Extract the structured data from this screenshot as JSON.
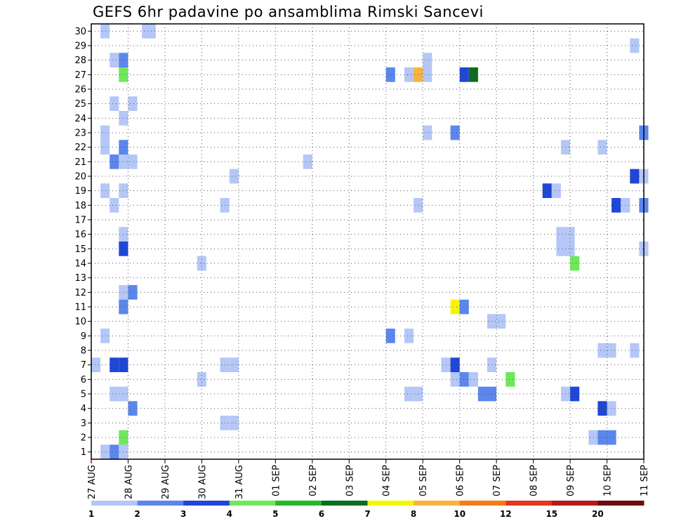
{
  "chart_data": {
    "type": "heatmap",
    "title": "GEFS 6hr padavine po ansamblima Rimski Sancevi",
    "xlabel": "",
    "ylabel": "",
    "x_ticks": [
      "27 AUG",
      "28 AUG",
      "29 AUG",
      "30 AUG",
      "31 AUG",
      "01 SEP",
      "02 SEP",
      "03 SEP",
      "04 SEP",
      "05 SEP",
      "06 SEP",
      "07 SEP",
      "08 SEP",
      "09 SEP",
      "10 SEP",
      "11 SEP"
    ],
    "x_range_days": [
      0,
      15
    ],
    "y_ticks": [
      1,
      2,
      3,
      4,
      5,
      6,
      7,
      8,
      9,
      10,
      11,
      12,
      13,
      14,
      15,
      16,
      17,
      18,
      19,
      20,
      21,
      22,
      23,
      24,
      25,
      26,
      27,
      28,
      29,
      30
    ],
    "y_range": [
      0.5,
      30.5
    ],
    "grid": true,
    "legend": {
      "placement": "bottom",
      "labels": [
        "1",
        "2",
        "3",
        "4",
        "5",
        "6",
        "7",
        "8",
        "10",
        "12",
        "15",
        "20"
      ],
      "colors": [
        "#b4c7f6",
        "#5b86ec",
        "#1f46d6",
        "#6ee85a",
        "#25b82c",
        "#0a6e1e",
        "#f6f600",
        "#f8b43a",
        "#f57c16",
        "#df3a1e",
        "#b31a1a",
        "#6e0c0c"
      ]
    },
    "cells": [
      {
        "day": 0.375,
        "member": 30,
        "c": 1
      },
      {
        "day": 1.5,
        "member": 30,
        "c": 1
      },
      {
        "day": 1.625,
        "member": 30,
        "c": 1
      },
      {
        "day": 14.75,
        "member": 29,
        "c": 1
      },
      {
        "day": 0.625,
        "member": 28,
        "c": 1
      },
      {
        "day": 0.875,
        "member": 28,
        "c": 2
      },
      {
        "day": 9.125,
        "member": 28,
        "c": 1
      },
      {
        "day": 0.875,
        "member": 27,
        "c": 4
      },
      {
        "day": 8.125,
        "member": 27,
        "c": 2
      },
      {
        "day": 8.625,
        "member": 27,
        "c": 1
      },
      {
        "day": 8.875,
        "member": 27,
        "c": 8
      },
      {
        "day": 9.125,
        "member": 27,
        "c": 1
      },
      {
        "day": 10.125,
        "member": 27,
        "c": 3
      },
      {
        "day": 10.375,
        "member": 27,
        "c": 6
      },
      {
        "day": 0.625,
        "member": 25,
        "c": 1
      },
      {
        "day": 1.125,
        "member": 25,
        "c": 1
      },
      {
        "day": 0.875,
        "member": 24,
        "c": 1
      },
      {
        "day": 0.375,
        "member": 23,
        "c": 1
      },
      {
        "day": 9.125,
        "member": 23,
        "c": 1
      },
      {
        "day": 9.875,
        "member": 23,
        "c": 2
      },
      {
        "day": 15.0,
        "member": 23,
        "c": 2
      },
      {
        "day": 0.375,
        "member": 22,
        "c": 1
      },
      {
        "day": 0.875,
        "member": 22,
        "c": 2
      },
      {
        "day": 12.875,
        "member": 22,
        "c": 1
      },
      {
        "day": 13.875,
        "member": 22,
        "c": 1
      },
      {
        "day": 0.625,
        "member": 21,
        "c": 2
      },
      {
        "day": 0.875,
        "member": 21,
        "c": 1
      },
      {
        "day": 1.125,
        "member": 21,
        "c": 1
      },
      {
        "day": 5.875,
        "member": 21,
        "c": 1
      },
      {
        "day": 3.875,
        "member": 20,
        "c": 1
      },
      {
        "day": 14.75,
        "member": 20,
        "c": 3
      },
      {
        "day": 15.0,
        "member": 20,
        "c": 1
      },
      {
        "day": 0.375,
        "member": 19,
        "c": 1
      },
      {
        "day": 0.875,
        "member": 19,
        "c": 1
      },
      {
        "day": 12.375,
        "member": 19,
        "c": 3
      },
      {
        "day": 12.625,
        "member": 19,
        "c": 1
      },
      {
        "day": 0.625,
        "member": 18,
        "c": 1
      },
      {
        "day": 3.625,
        "member": 18,
        "c": 1
      },
      {
        "day": 8.875,
        "member": 18,
        "c": 1
      },
      {
        "day": 14.25,
        "member": 18,
        "c": 3
      },
      {
        "day": 14.5,
        "member": 18,
        "c": 1
      },
      {
        "day": 15.0,
        "member": 18,
        "c": 2
      },
      {
        "day": 0.875,
        "member": 16,
        "c": 1
      },
      {
        "day": 12.75,
        "member": 16,
        "c": 1
      },
      {
        "day": 13.0,
        "member": 16,
        "c": 1
      },
      {
        "day": 0.875,
        "member": 15,
        "c": 3
      },
      {
        "day": 12.75,
        "member": 15,
        "c": 1
      },
      {
        "day": 13.0,
        "member": 15,
        "c": 1
      },
      {
        "day": 15.0,
        "member": 15,
        "c": 1
      },
      {
        "day": 3.0,
        "member": 14,
        "c": 1
      },
      {
        "day": 13.125,
        "member": 14,
        "c": 4
      },
      {
        "day": 0.875,
        "member": 12,
        "c": 1
      },
      {
        "day": 1.125,
        "member": 12,
        "c": 2
      },
      {
        "day": 0.875,
        "member": 11,
        "c": 2
      },
      {
        "day": 9.875,
        "member": 11,
        "c": 7
      },
      {
        "day": 10.125,
        "member": 11,
        "c": 2
      },
      {
        "day": 10.875,
        "member": 10,
        "c": 1
      },
      {
        "day": 11.125,
        "member": 10,
        "c": 1
      },
      {
        "day": 0.375,
        "member": 9,
        "c": 1
      },
      {
        "day": 8.125,
        "member": 9,
        "c": 2
      },
      {
        "day": 8.625,
        "member": 9,
        "c": 1
      },
      {
        "day": 13.875,
        "member": 8,
        "c": 1
      },
      {
        "day": 14.125,
        "member": 8,
        "c": 1
      },
      {
        "day": 14.75,
        "member": 8,
        "c": 1
      },
      {
        "day": 0.125,
        "member": 7,
        "c": 1
      },
      {
        "day": 0.625,
        "member": 7,
        "c": 3
      },
      {
        "day": 0.875,
        "member": 7,
        "c": 3
      },
      {
        "day": 3.625,
        "member": 7,
        "c": 1
      },
      {
        "day": 3.875,
        "member": 7,
        "c": 1
      },
      {
        "day": 9.625,
        "member": 7,
        "c": 1
      },
      {
        "day": 9.875,
        "member": 7,
        "c": 3
      },
      {
        "day": 10.875,
        "member": 7,
        "c": 1
      },
      {
        "day": 3.0,
        "member": 6,
        "c": 1
      },
      {
        "day": 9.875,
        "member": 6,
        "c": 1
      },
      {
        "day": 10.125,
        "member": 6,
        "c": 2
      },
      {
        "day": 10.375,
        "member": 6,
        "c": 1
      },
      {
        "day": 11.375,
        "member": 6,
        "c": 4
      },
      {
        "day": 0.625,
        "member": 5,
        "c": 1
      },
      {
        "day": 0.875,
        "member": 5,
        "c": 1
      },
      {
        "day": 8.625,
        "member": 5,
        "c": 1
      },
      {
        "day": 8.875,
        "member": 5,
        "c": 1
      },
      {
        "day": 10.625,
        "member": 5,
        "c": 2
      },
      {
        "day": 10.875,
        "member": 5,
        "c": 2
      },
      {
        "day": 12.875,
        "member": 5,
        "c": 1
      },
      {
        "day": 13.125,
        "member": 5,
        "c": 3
      },
      {
        "day": 1.125,
        "member": 4,
        "c": 2
      },
      {
        "day": 13.875,
        "member": 4,
        "c": 3
      },
      {
        "day": 14.125,
        "member": 4,
        "c": 1
      },
      {
        "day": 3.625,
        "member": 3,
        "c": 1
      },
      {
        "day": 3.875,
        "member": 3,
        "c": 1
      },
      {
        "day": 0.875,
        "member": 2,
        "c": 4
      },
      {
        "day": 13.625,
        "member": 2,
        "c": 1
      },
      {
        "day": 13.875,
        "member": 2,
        "c": 2
      },
      {
        "day": 14.125,
        "member": 2,
        "c": 2
      },
      {
        "day": 0.375,
        "member": 1,
        "c": 1
      },
      {
        "day": 0.625,
        "member": 1,
        "c": 2
      },
      {
        "day": 0.875,
        "member": 1,
        "c": 1
      }
    ]
  }
}
